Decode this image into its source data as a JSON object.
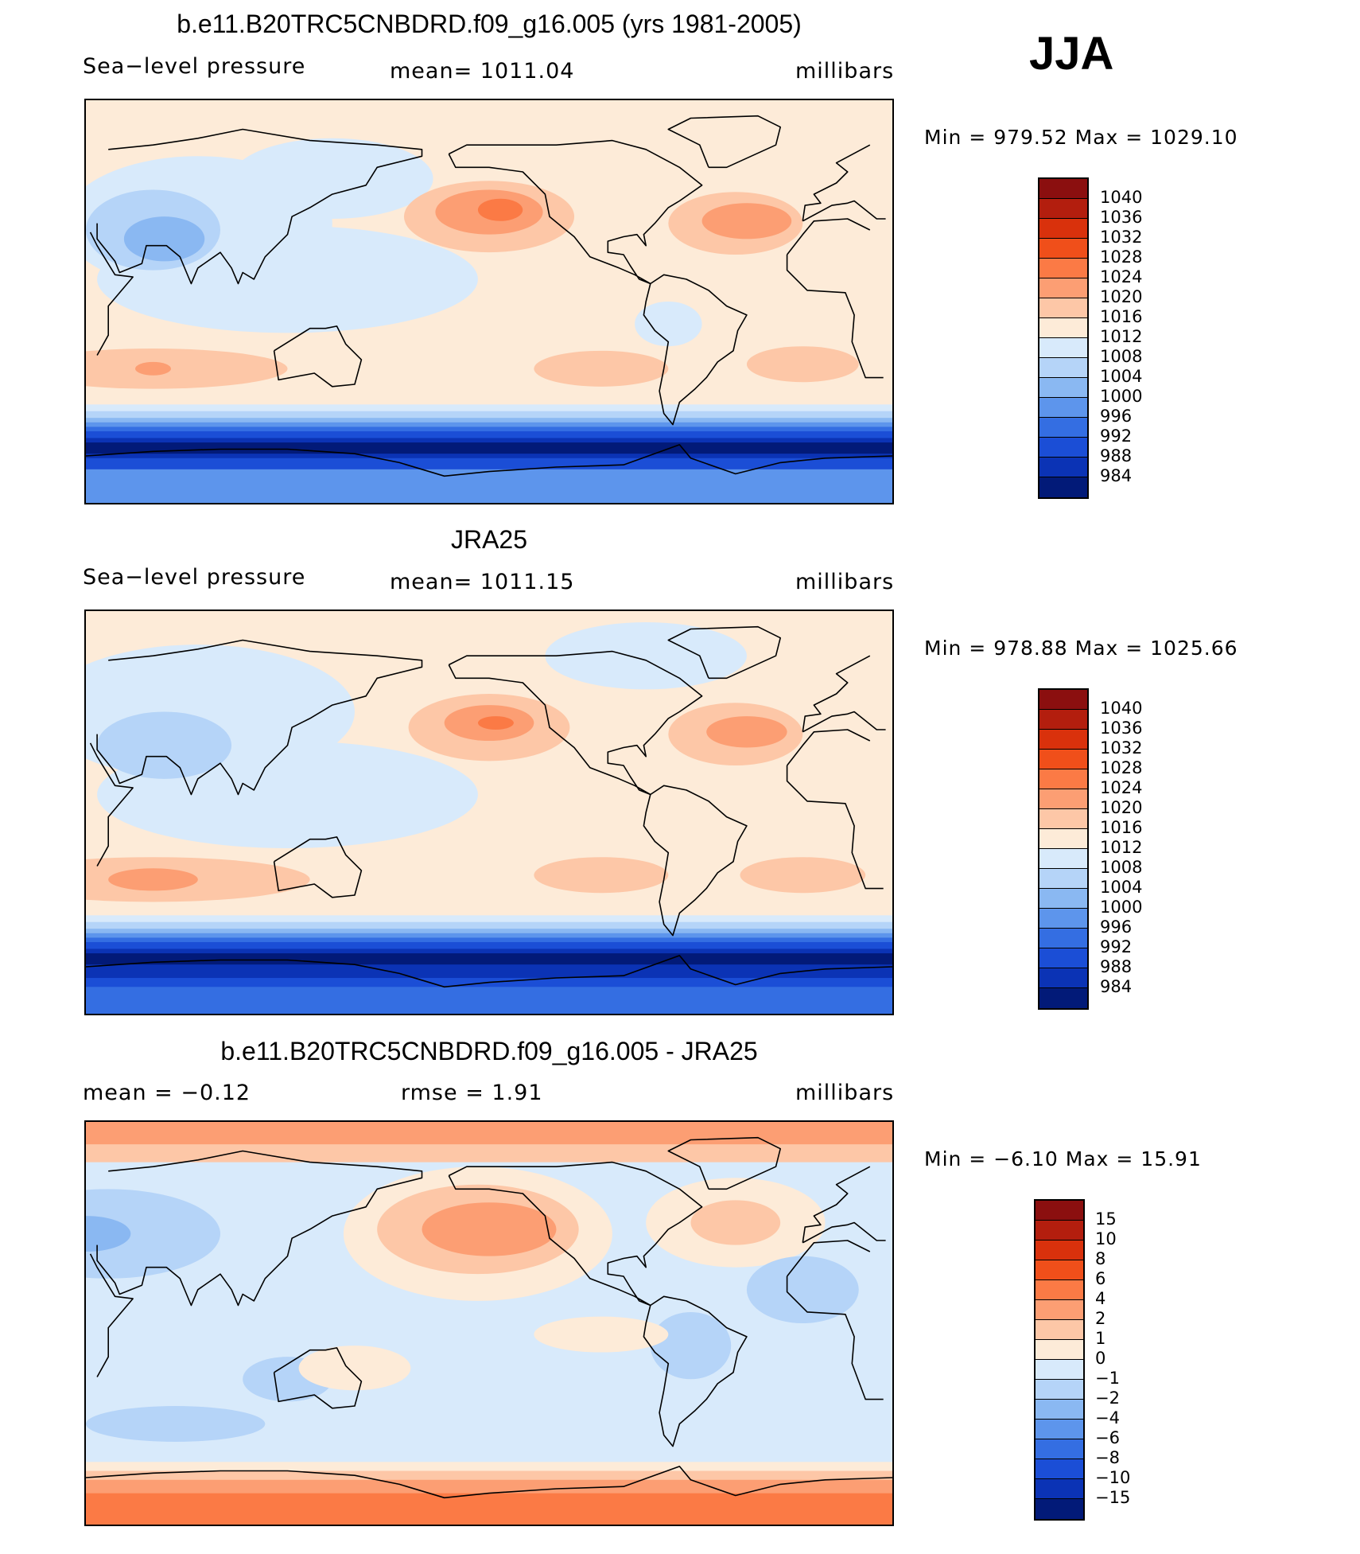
{
  "season": "JJA",
  "panels": [
    {
      "title": "b.e11.B20TRC5CNBDRD.f09_g16.005 (yrs 1981-2005)",
      "left_label": "Sea−level pressure",
      "center_label": "mean=  1011.04",
      "units": "millibars",
      "minmax": "Min  =  979.52  Max  =  1029.10",
      "colorbar": {
        "labels": [
          "1040",
          "1036",
          "1032",
          "1028",
          "1024",
          "1020",
          "1016",
          "1012",
          "1008",
          "1004",
          "1000",
          "996",
          "992",
          "988",
          "984"
        ],
        "colors": [
          "#8b0f0f",
          "#b31e0e",
          "#d9310c",
          "#f04f1a",
          "#fb7a45",
          "#fc9e73",
          "#fdc7a7",
          "#fdebd8",
          "#d8eafb",
          "#b5d4f8",
          "#8ab8f2",
          "#5d95ec",
          "#346ee2",
          "#1b4ed6",
          "#0b33b5",
          "#021a78"
        ]
      },
      "field": {
        "bg": "#fdebd8",
        "blobs": [
          {
            "c": "#d8eafb",
            "lon": 120,
            "lat": 10,
            "rx": 85,
            "ry": 24
          },
          {
            "c": "#d8eafb",
            "lon": 80,
            "lat": 35,
            "rx": 60,
            "ry": 30
          },
          {
            "c": "#b5d4f8",
            "lon": 60,
            "lat": 32,
            "rx": 30,
            "ry": 18
          },
          {
            "c": "#8ab8f2",
            "lon": 65,
            "lat": 28,
            "rx": 18,
            "ry": 10
          },
          {
            "c": "#d8eafb",
            "lon": 140,
            "lat": 55,
            "rx": 45,
            "ry": 18
          },
          {
            "c": "#d8eafb",
            "lon": -70,
            "lat": -10,
            "rx": 15,
            "ry": 10
          },
          {
            "c": "#fdc7a7",
            "lon": -150,
            "lat": 38,
            "rx": 38,
            "ry": 16
          },
          {
            "c": "#fc9e73",
            "lon": -150,
            "lat": 40,
            "rx": 24,
            "ry": 10
          },
          {
            "c": "#fb7a45",
            "lon": -145,
            "lat": 41,
            "rx": 10,
            "ry": 5
          },
          {
            "c": "#fdc7a7",
            "lon": -40,
            "lat": 35,
            "rx": 30,
            "ry": 14
          },
          {
            "c": "#fc9e73",
            "lon": -35,
            "lat": 36,
            "rx": 20,
            "ry": 8
          },
          {
            "c": "#fdc7a7",
            "lon": 60,
            "lat": -30,
            "rx": 60,
            "ry": 9
          },
          {
            "c": "#fc9e73",
            "lon": 60,
            "lat": -30,
            "rx": 8,
            "ry": 3
          },
          {
            "c": "#fdc7a7",
            "lon": -100,
            "lat": -30,
            "rx": 30,
            "ry": 8
          },
          {
            "c": "#fdc7a7",
            "lon": -10,
            "lat": -28,
            "rx": 25,
            "ry": 8
          }
        ],
        "bands": [
          {
            "c": "#d8eafb",
            "lat1": -46,
            "lat2": -90
          },
          {
            "c": "#b5d4f8",
            "lat1": -49,
            "lat2": -90
          },
          {
            "c": "#8ab8f2",
            "lat1": -52,
            "lat2": -90
          },
          {
            "c": "#5d95ec",
            "lat1": -54,
            "lat2": -90
          },
          {
            "c": "#346ee2",
            "lat1": -56,
            "lat2": -90
          },
          {
            "c": "#1b4ed6",
            "lat1": -58,
            "lat2": -90
          },
          {
            "c": "#0b33b5",
            "lat1": -61,
            "lat2": -85
          },
          {
            "c": "#021a78",
            "lat1": -63,
            "lat2": -68
          },
          {
            "c": "#1b4ed6",
            "lat1": -70,
            "lat2": -90
          },
          {
            "c": "#5d95ec",
            "lat1": -75,
            "lat2": -90
          }
        ]
      }
    },
    {
      "title": "JRA25",
      "left_label": "Sea−level pressure",
      "center_label": "mean=  1011.15",
      "units": "millibars",
      "minmax": "Min  =  978.88  Max  =  1025.66",
      "colorbar": {
        "labels": [
          "1040",
          "1036",
          "1032",
          "1028",
          "1024",
          "1020",
          "1016",
          "1012",
          "1008",
          "1004",
          "1000",
          "996",
          "992",
          "988",
          "984"
        ],
        "colors": [
          "#8b0f0f",
          "#b31e0e",
          "#d9310c",
          "#f04f1a",
          "#fb7a45",
          "#fc9e73",
          "#fdc7a7",
          "#fdebd8",
          "#d8eafb",
          "#b5d4f8",
          "#8ab8f2",
          "#5d95ec",
          "#346ee2",
          "#1b4ed6",
          "#0b33b5",
          "#021a78"
        ]
      },
      "field": {
        "bg": "#fdebd8",
        "blobs": [
          {
            "c": "#d8eafb",
            "lon": 120,
            "lat": 8,
            "rx": 85,
            "ry": 24
          },
          {
            "c": "#d8eafb",
            "lon": 80,
            "lat": 45,
            "rx": 70,
            "ry": 30
          },
          {
            "c": "#b5d4f8",
            "lon": 65,
            "lat": 30,
            "rx": 30,
            "ry": 15
          },
          {
            "c": "#d8eafb",
            "lon": -80,
            "lat": 70,
            "rx": 45,
            "ry": 15
          },
          {
            "c": "#fdc7a7",
            "lon": -150,
            "lat": 38,
            "rx": 36,
            "ry": 15
          },
          {
            "c": "#fc9e73",
            "lon": -150,
            "lat": 40,
            "rx": 20,
            "ry": 8
          },
          {
            "c": "#fb7a45",
            "lon": -147,
            "lat": 40,
            "rx": 8,
            "ry": 3
          },
          {
            "c": "#fdc7a7",
            "lon": -40,
            "lat": 35,
            "rx": 30,
            "ry": 14
          },
          {
            "c": "#fc9e73",
            "lon": -35,
            "lat": 36,
            "rx": 18,
            "ry": 7
          },
          {
            "c": "#fdc7a7",
            "lon": 60,
            "lat": -30,
            "rx": 70,
            "ry": 10
          },
          {
            "c": "#fc9e73",
            "lon": 60,
            "lat": -30,
            "rx": 20,
            "ry": 5
          },
          {
            "c": "#fdc7a7",
            "lon": -100,
            "lat": -28,
            "rx": 30,
            "ry": 8
          },
          {
            "c": "#fdc7a7",
            "lon": -10,
            "lat": -28,
            "rx": 28,
            "ry": 8
          }
        ],
        "bands": [
          {
            "c": "#d8eafb",
            "lat1": -46,
            "lat2": -90
          },
          {
            "c": "#b5d4f8",
            "lat1": -49,
            "lat2": -90
          },
          {
            "c": "#8ab8f2",
            "lat1": -52,
            "lat2": -90
          },
          {
            "c": "#5d95ec",
            "lat1": -54,
            "lat2": -90
          },
          {
            "c": "#346ee2",
            "lat1": -56,
            "lat2": -90
          },
          {
            "c": "#1b4ed6",
            "lat1": -58,
            "lat2": -90
          },
          {
            "c": "#0b33b5",
            "lat1": -61,
            "lat2": -82
          },
          {
            "c": "#021a78",
            "lat1": -63,
            "lat2": -68
          },
          {
            "c": "#1b4ed6",
            "lat1": -74,
            "lat2": -90
          },
          {
            "c": "#346ee2",
            "lat1": -78,
            "lat2": -90
          }
        ]
      }
    },
    {
      "title": "b.e11.B20TRC5CNBDRD.f09_g16.005 - JRA25",
      "left_label": "mean  =    −0.12",
      "center_label": "rmse  =     1.91",
      "units": "millibars",
      "minmax": "Min  =    −6.10  Max  =    15.91",
      "colorbar": {
        "labels": [
          "15",
          "10",
          "8",
          "6",
          "4",
          "2",
          "1",
          "0",
          "−1",
          "−2",
          "−4",
          "−6",
          "−8",
          "−10",
          "−15"
        ],
        "colors": [
          "#8b0f0f",
          "#b31e0e",
          "#d9310c",
          "#f04f1a",
          "#fb7a45",
          "#fc9e73",
          "#fdc7a7",
          "#fdebd8",
          "#d8eafb",
          "#b5d4f8",
          "#8ab8f2",
          "#5d95ec",
          "#346ee2",
          "#1b4ed6",
          "#0b33b5",
          "#021a78"
        ]
      },
      "field": {
        "bg": "#d8eafb",
        "blobs": [
          {
            "c": "#fdebd8",
            "lon": -155,
            "lat": 40,
            "rx": 60,
            "ry": 30
          },
          {
            "c": "#fdc7a7",
            "lon": -155,
            "lat": 42,
            "rx": 45,
            "ry": 20
          },
          {
            "c": "#fc9e73",
            "lon": -150,
            "lat": 42,
            "rx": 30,
            "ry": 12
          },
          {
            "c": "#fdebd8",
            "lon": -40,
            "lat": 45,
            "rx": 40,
            "ry": 20
          },
          {
            "c": "#fdc7a7",
            "lon": -40,
            "lat": 45,
            "rx": 20,
            "ry": 10
          },
          {
            "c": "#b5d4f8",
            "lon": 40,
            "lat": 40,
            "rx": 50,
            "ry": 20
          },
          {
            "c": "#8ab8f2",
            "lon": 30,
            "lat": 40,
            "rx": 20,
            "ry": 8
          },
          {
            "c": "#b5d4f8",
            "lon": -60,
            "lat": -10,
            "rx": 18,
            "ry": 15
          },
          {
            "c": "#b5d4f8",
            "lon": 120,
            "lat": -25,
            "rx": 20,
            "ry": 10
          },
          {
            "c": "#b5d4f8",
            "lon": -10,
            "lat": 15,
            "rx": 25,
            "ry": 15
          },
          {
            "c": "#b5d4f8",
            "lon": 70,
            "lat": -45,
            "rx": 40,
            "ry": 8
          },
          {
            "c": "#fdebd8",
            "lon": 150,
            "lat": -20,
            "rx": 25,
            "ry": 10
          },
          {
            "c": "#fdebd8",
            "lon": -100,
            "lat": -5,
            "rx": 30,
            "ry": 8
          }
        ],
        "bands": [
          {
            "c": "#fdc7a7",
            "lat1": 90,
            "lat2": 72
          },
          {
            "c": "#fc9e73",
            "lat1": 90,
            "lat2": 80
          },
          {
            "c": "#fdebd8",
            "lat1": -62,
            "lat2": -90
          },
          {
            "c": "#fdc7a7",
            "lat1": -66,
            "lat2": -90
          },
          {
            "c": "#fc9e73",
            "lat1": -70,
            "lat2": -90
          },
          {
            "c": "#fb7a45",
            "lat1": -76,
            "lat2": -90
          }
        ]
      }
    }
  ]
}
